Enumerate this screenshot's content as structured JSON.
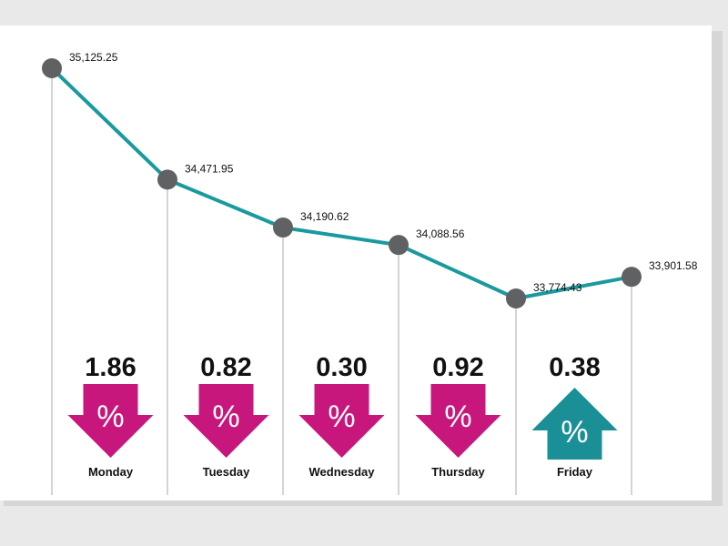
{
  "chart_data": {
    "type": "line",
    "categories": [
      "Monday",
      "Tuesday",
      "Wednesday",
      "Thursday",
      "Friday"
    ],
    "points": [
      {
        "value": 35125.25,
        "label": "35,125.25"
      },
      {
        "value": 34471.95,
        "label": "34,471.95"
      },
      {
        "value": 34190.62,
        "label": "34,190.62"
      },
      {
        "value": 34088.56,
        "label": "34,088.56"
      },
      {
        "value": 33774.43,
        "label": "33,774.43"
      },
      {
        "value": 33901.58,
        "label": "33,901.58"
      }
    ],
    "daily_changes": [
      {
        "day": "Monday",
        "change": "1.86",
        "direction": "down"
      },
      {
        "day": "Tuesday",
        "change": "0.82",
        "direction": "down"
      },
      {
        "day": "Wednesday",
        "change": "0.30",
        "direction": "down"
      },
      {
        "day": "Thursday",
        "change": "0.92",
        "direction": "down"
      },
      {
        "day": "Friday",
        "change": "0.38",
        "direction": "up"
      }
    ],
    "arrow_symbol": "%",
    "grid": true,
    "colors": {
      "line": "#1a9a9f",
      "point": "#5f6163",
      "down": "#c8177c",
      "up": "#1a9096"
    }
  }
}
